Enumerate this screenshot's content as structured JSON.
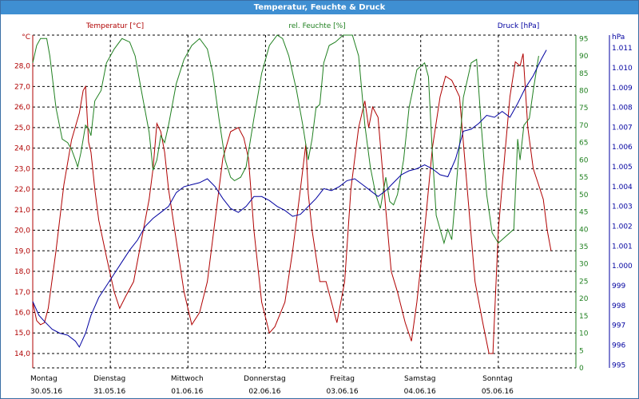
{
  "window": {
    "title": "Temperatur, Feuchte & Druck"
  },
  "legend": {
    "temp": "Temperatur [°C]",
    "hum": "rel. Feuchte [%]",
    "press": "Druck [hPa]"
  },
  "colors": {
    "temp": "#b00000",
    "hum": "#208020",
    "press": "#0000a0",
    "grid": "#000000",
    "titlebar": "#3f8fd2"
  },
  "chart_data": {
    "type": "line",
    "grid": true,
    "x_axis": {
      "days": [
        {
          "weekday": "Montag",
          "date": "30.05.16"
        },
        {
          "weekday": "Dienstag",
          "date": "31.05.16"
        },
        {
          "weekday": "Mittwoch",
          "date": "01.06.16"
        },
        {
          "weekday": "Donnerstag",
          "date": "02.06.16"
        },
        {
          "weekday": "Freitag",
          "date": "03.06.16"
        },
        {
          "weekday": "Samstag",
          "date": "04.06.16"
        },
        {
          "weekday": "Sonntag",
          "date": "05.06.16"
        }
      ],
      "range_days": [
        0,
        7
      ]
    },
    "axes": {
      "temp": {
        "unit": "°C",
        "ylim": [
          13.3,
          29.5
        ],
        "ticks": [
          "14,0",
          "15,0",
          "16,0",
          "17,0",
          "18,0",
          "19,0",
          "20,0",
          "21,0",
          "22,0",
          "23,0",
          "24,0",
          "25,0",
          "26,0",
          "27,0",
          "28,0"
        ]
      },
      "hum": {
        "unit": "",
        "ylim": [
          0,
          96
        ],
        "ticks": [
          "0",
          "5",
          "10",
          "15",
          "20",
          "25",
          "30",
          "35",
          "40",
          "45",
          "50",
          "55",
          "60",
          "65",
          "70",
          "75",
          "80",
          "85",
          "90",
          "95"
        ]
      },
      "press": {
        "unit": "hPa",
        "ylim": [
          994.85,
          1011.65
        ],
        "ticks": [
          "995",
          "996",
          "997",
          "998",
          "999",
          "1.000",
          "1.001",
          "1.002",
          "1.003",
          "1.004",
          "1.005",
          "1.006",
          "1.007",
          "1.008",
          "1.009",
          "1.010",
          "1.011"
        ]
      }
    },
    "series": [
      {
        "name": "Temperatur [°C]",
        "axis": "temp",
        "color": "#b00000",
        "points": [
          [
            0,
            16.5
          ],
          [
            0.05,
            15.6
          ],
          [
            0.1,
            15.4
          ],
          [
            0.15,
            15.5
          ],
          [
            0.2,
            16.2
          ],
          [
            0.3,
            19.0
          ],
          [
            0.4,
            22.2
          ],
          [
            0.5,
            24.4
          ],
          [
            0.6,
            25.7
          ],
          [
            0.65,
            26.8
          ],
          [
            0.68,
            27.0
          ],
          [
            0.72,
            24.3
          ],
          [
            0.75,
            23.8
          ],
          [
            0.8,
            22.0
          ],
          [
            0.85,
            20.5
          ],
          [
            0.95,
            18.7
          ],
          [
            1.05,
            17.0
          ],
          [
            1.12,
            16.2
          ],
          [
            1.2,
            16.8
          ],
          [
            1.3,
            17.5
          ],
          [
            1.4,
            19.5
          ],
          [
            1.5,
            21.5
          ],
          [
            1.55,
            23.0
          ],
          [
            1.6,
            25.2
          ],
          [
            1.65,
            24.8
          ],
          [
            1.7,
            23.8
          ],
          [
            1.75,
            22.0
          ],
          [
            1.85,
            19.5
          ],
          [
            1.95,
            17.0
          ],
          [
            2.05,
            15.4
          ],
          [
            2.15,
            16.0
          ],
          [
            2.25,
            17.5
          ],
          [
            2.35,
            20.5
          ],
          [
            2.45,
            23.5
          ],
          [
            2.55,
            24.8
          ],
          [
            2.65,
            25.0
          ],
          [
            2.72,
            24.5
          ],
          [
            2.78,
            23.5
          ],
          [
            2.85,
            20.0
          ],
          [
            2.95,
            16.5
          ],
          [
            3.05,
            15.0
          ],
          [
            3.12,
            15.3
          ],
          [
            3.25,
            16.5
          ],
          [
            3.35,
            19.0
          ],
          [
            3.45,
            22.0
          ],
          [
            3.52,
            24.2
          ],
          [
            3.55,
            21.8
          ],
          [
            3.6,
            20.0
          ],
          [
            3.7,
            17.5
          ],
          [
            3.78,
            17.5
          ],
          [
            3.85,
            16.5
          ],
          [
            3.92,
            15.5
          ],
          [
            4.02,
            17.5
          ],
          [
            4.1,
            22.0
          ],
          [
            4.2,
            25.0
          ],
          [
            4.28,
            26.3
          ],
          [
            4.33,
            25.0
          ],
          [
            4.38,
            26.0
          ],
          [
            4.45,
            25.5
          ],
          [
            4.55,
            21.0
          ],
          [
            4.62,
            18.0
          ],
          [
            4.7,
            17.0
          ],
          [
            4.8,
            15.5
          ],
          [
            4.88,
            14.6
          ],
          [
            4.95,
            16.5
          ],
          [
            5.05,
            20.0
          ],
          [
            5.15,
            24.0
          ],
          [
            5.25,
            26.5
          ],
          [
            5.32,
            27.5
          ],
          [
            5.4,
            27.3
          ],
          [
            5.5,
            26.5
          ],
          [
            5.6,
            22.0
          ],
          [
            5.7,
            17.5
          ],
          [
            5.8,
            15.5
          ],
          [
            5.88,
            14.0
          ],
          [
            5.93,
            14.0
          ],
          [
            6.0,
            20.0
          ],
          [
            6.08,
            23.5
          ],
          [
            6.15,
            26.5
          ],
          [
            6.22,
            28.2
          ],
          [
            6.28,
            28.0
          ],
          [
            6.32,
            28.6
          ],
          [
            6.38,
            25.0
          ],
          [
            6.45,
            23.0
          ],
          [
            6.52,
            22.2
          ],
          [
            6.58,
            21.5
          ],
          [
            6.63,
            20.0
          ],
          [
            6.68,
            19.0
          ]
        ]
      },
      {
        "name": "rel. Feuchte [%]",
        "axis": "hum",
        "color": "#208020",
        "points": [
          [
            0,
            88
          ],
          [
            0.05,
            93
          ],
          [
            0.1,
            95
          ],
          [
            0.18,
            95
          ],
          [
            0.22,
            90
          ],
          [
            0.3,
            75
          ],
          [
            0.38,
            66
          ],
          [
            0.45,
            65
          ],
          [
            0.5,
            63
          ],
          [
            0.55,
            60
          ],
          [
            0.58,
            58
          ],
          [
            0.62,
            62
          ],
          [
            0.68,
            70
          ],
          [
            0.72,
            69
          ],
          [
            0.75,
            67
          ],
          [
            0.8,
            77
          ],
          [
            0.88,
            80
          ],
          [
            0.95,
            88
          ],
          [
            1.05,
            92
          ],
          [
            1.15,
            95
          ],
          [
            1.25,
            94
          ],
          [
            1.32,
            90
          ],
          [
            1.4,
            80
          ],
          [
            1.5,
            68
          ],
          [
            1.55,
            57
          ],
          [
            1.6,
            60
          ],
          [
            1.65,
            67
          ],
          [
            1.7,
            65
          ],
          [
            1.75,
            70
          ],
          [
            1.85,
            82
          ],
          [
            1.95,
            89
          ],
          [
            2.05,
            93
          ],
          [
            2.15,
            95
          ],
          [
            2.25,
            92
          ],
          [
            2.32,
            85
          ],
          [
            2.4,
            72
          ],
          [
            2.48,
            60
          ],
          [
            2.55,
            55
          ],
          [
            2.6,
            54
          ],
          [
            2.68,
            55
          ],
          [
            2.75,
            58
          ],
          [
            2.85,
            72
          ],
          [
            2.95,
            85
          ],
          [
            3.05,
            93
          ],
          [
            3.15,
            96
          ],
          [
            3.22,
            95
          ],
          [
            3.3,
            90
          ],
          [
            3.4,
            80
          ],
          [
            3.48,
            70
          ],
          [
            3.55,
            60
          ],
          [
            3.6,
            66
          ],
          [
            3.65,
            75
          ],
          [
            3.7,
            76
          ],
          [
            3.75,
            88
          ],
          [
            3.82,
            93
          ],
          [
            3.9,
            94
          ],
          [
            4.0,
            96
          ],
          [
            4.12,
            96
          ],
          [
            4.2,
            90
          ],
          [
            4.28,
            70
          ],
          [
            4.35,
            58
          ],
          [
            4.42,
            50
          ],
          [
            4.48,
            46
          ],
          [
            4.55,
            55
          ],
          [
            4.6,
            48
          ],
          [
            4.65,
            47
          ],
          [
            4.7,
            50
          ],
          [
            4.78,
            60
          ],
          [
            4.85,
            75
          ],
          [
            4.95,
            86
          ],
          [
            5.05,
            88
          ],
          [
            5.1,
            84
          ],
          [
            5.15,
            62
          ],
          [
            5.2,
            44
          ],
          [
            5.25,
            40
          ],
          [
            5.3,
            36
          ],
          [
            5.35,
            40
          ],
          [
            5.4,
            37
          ],
          [
            5.45,
            50
          ],
          [
            5.55,
            78
          ],
          [
            5.65,
            88
          ],
          [
            5.72,
            89
          ],
          [
            5.78,
            70
          ],
          [
            5.85,
            50
          ],
          [
            5.92,
            39
          ],
          [
            6.0,
            36
          ],
          [
            6.05,
            37
          ],
          [
            6.1,
            38
          ],
          [
            6.2,
            40
          ],
          [
            6.25,
            66
          ],
          [
            6.28,
            60
          ],
          [
            6.33,
            70
          ],
          [
            6.4,
            72
          ],
          [
            6.45,
            80
          ],
          [
            6.52,
            90
          ]
        ]
      },
      {
        "name": "Druck [hPa]",
        "axis": "press",
        "color": "#0000a0",
        "points": [
          [
            0,
            998.2
          ],
          [
            0.08,
            997.5
          ],
          [
            0.15,
            997.2
          ],
          [
            0.25,
            996.8
          ],
          [
            0.35,
            996.6
          ],
          [
            0.45,
            996.5
          ],
          [
            0.55,
            996.2
          ],
          [
            0.6,
            995.9
          ],
          [
            0.68,
            996.6
          ],
          [
            0.75,
            997.5
          ],
          [
            0.85,
            998.4
          ],
          [
            0.95,
            999.0
          ],
          [
            1.05,
            999.6
          ],
          [
            1.15,
            1000.2
          ],
          [
            1.25,
            1000.8
          ],
          [
            1.35,
            1001.3
          ],
          [
            1.45,
            1002.0
          ],
          [
            1.55,
            1002.4
          ],
          [
            1.65,
            1002.7
          ],
          [
            1.75,
            1003.0
          ],
          [
            1.85,
            1003.7
          ],
          [
            1.95,
            1004.0
          ],
          [
            2.05,
            1004.1
          ],
          [
            2.15,
            1004.2
          ],
          [
            2.25,
            1004.4
          ],
          [
            2.35,
            1004.0
          ],
          [
            2.45,
            1003.4
          ],
          [
            2.55,
            1002.9
          ],
          [
            2.65,
            1002.7
          ],
          [
            2.75,
            1003.0
          ],
          [
            2.85,
            1003.5
          ],
          [
            2.95,
            1003.5
          ],
          [
            3.05,
            1003.3
          ],
          [
            3.15,
            1003.0
          ],
          [
            3.25,
            1002.8
          ],
          [
            3.35,
            1002.5
          ],
          [
            3.45,
            1002.6
          ],
          [
            3.55,
            1003.0
          ],
          [
            3.65,
            1003.4
          ],
          [
            3.75,
            1003.9
          ],
          [
            3.85,
            1003.8
          ],
          [
            3.95,
            1004.0
          ],
          [
            4.05,
            1004.3
          ],
          [
            4.15,
            1004.4
          ],
          [
            4.25,
            1004.1
          ],
          [
            4.35,
            1003.8
          ],
          [
            4.45,
            1003.5
          ],
          [
            4.55,
            1003.8
          ],
          [
            4.65,
            1004.2
          ],
          [
            4.75,
            1004.6
          ],
          [
            4.85,
            1004.8
          ],
          [
            4.95,
            1004.9
          ],
          [
            5.05,
            1005.1
          ],
          [
            5.15,
            1004.9
          ],
          [
            5.25,
            1004.6
          ],
          [
            5.35,
            1004.5
          ],
          [
            5.45,
            1005.4
          ],
          [
            5.55,
            1006.8
          ],
          [
            5.65,
            1006.9
          ],
          [
            5.75,
            1007.2
          ],
          [
            5.85,
            1007.6
          ],
          [
            5.95,
            1007.5
          ],
          [
            6.05,
            1007.8
          ],
          [
            6.15,
            1007.5
          ],
          [
            6.25,
            1008.2
          ],
          [
            6.35,
            1009.0
          ],
          [
            6.45,
            1009.6
          ],
          [
            6.55,
            1010.4
          ],
          [
            6.62,
            1010.9
          ]
        ]
      }
    ]
  }
}
